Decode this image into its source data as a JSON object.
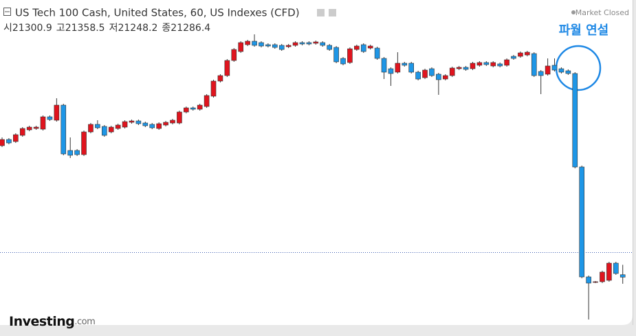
{
  "chart_data": {
    "type": "candlestick",
    "title": "US Tech 100 Cash, United States, 60, US Indexes (CFD)",
    "status": "Market Closed",
    "ohlc_labels": [
      "시",
      "고",
      "저",
      "종"
    ],
    "annotation": "파월 연설",
    "logo": "Investing",
    "logo_suffix": ".com",
    "up_color": "#e0141e",
    "down_color": "#1e96e6",
    "ylim": [
      21020,
      22840
    ],
    "open": [
      22052,
      22088,
      22076,
      22112,
      22144,
      22152,
      22148,
      22220,
      22200,
      22288,
      22024,
      22024,
      22000,
      22132,
      22176,
      22164,
      22132,
      22152,
      22160,
      22188,
      22196,
      22184,
      22176,
      22152,
      22172,
      22184,
      22184,
      22248,
      22272,
      22264,
      22280,
      22340,
      22428,
      22460,
      22548,
      22600,
      22640,
      22660,
      22652,
      22640,
      22640,
      22636,
      22628,
      22636,
      22652,
      22652,
      22648,
      22652,
      22636,
      22624,
      22560,
      22536,
      22612,
      22640,
      22620,
      22620,
      22560,
      22500,
      22480,
      22532,
      22532,
      22480,
      22448,
      22500,
      22468,
      22440,
      22460,
      22500,
      22508,
      22500,
      22520,
      22536,
      22516,
      22528,
      22520,
      22572,
      22572,
      22580,
      22588,
      22484,
      22468,
      22520,
      22500,
      22488,
      22472,
      21928,
      21288,
      21256,
      21260,
      21268,
      21368,
      21300.9
    ],
    "high": [
      22100,
      22096,
      22124,
      22160,
      22168,
      22168,
      22228,
      22228,
      22328,
      22296,
      22100,
      22032,
      22140,
      22184,
      22200,
      22172,
      22168,
      22180,
      22200,
      22204,
      22204,
      22192,
      22184,
      22188,
      22196,
      22208,
      22256,
      22280,
      22280,
      22296,
      22352,
      22436,
      22468,
      22556,
      22620,
      22660,
      22668,
      22700,
      22660,
      22648,
      22648,
      22644,
      22644,
      22660,
      22660,
      22660,
      22664,
      22660,
      22644,
      22632,
      22568,
      22624,
      22640,
      22648,
      22640,
      22628,
      22568,
      22508,
      22596,
      22540,
      22540,
      22488,
      22500,
      22508,
      22476,
      22468,
      22512,
      22516,
      22516,
      22540,
      22544,
      22544,
      22544,
      22536,
      22560,
      22580,
      22600,
      22604,
      22596,
      22492,
      22560,
      22560,
      22508,
      22496,
      22480,
      21936,
      21296,
      21264,
      21324,
      21376,
      21376,
      21358.5
    ],
    "low": [
      22044,
      22060,
      22068,
      22104,
      22136,
      22144,
      22140,
      22196,
      22192,
      21996,
      21980,
      21992,
      21992,
      22124,
      22148,
      22104,
      22124,
      22144,
      22152,
      22180,
      22172,
      22160,
      22148,
      22144,
      22164,
      22176,
      22176,
      22240,
      22256,
      22256,
      22272,
      22332,
      22420,
      22452,
      22540,
      22592,
      22632,
      22628,
      22624,
      22624,
      22616,
      22604,
      22620,
      22628,
      22636,
      22636,
      22640,
      22628,
      22604,
      22532,
      22520,
      22528,
      22604,
      22592,
      22612,
      22552,
      22440,
      22400,
      22472,
      22512,
      22472,
      22432,
      22440,
      22452,
      22348,
      22432,
      22452,
      22492,
      22488,
      22492,
      22512,
      22516,
      22508,
      22508,
      22512,
      22552,
      22564,
      22572,
      22452,
      22352,
      22460,
      22484,
      22472,
      22464,
      21920,
      21280,
      21040,
      21252,
      21252,
      21260,
      21300,
      21248.2
    ],
    "close": [
      22088,
      22068,
      22116,
      22152,
      22160,
      22160,
      22220,
      22204,
      22288,
      22004,
      21996,
      22000,
      22132,
      22176,
      22156,
      22112,
      22160,
      22172,
      22192,
      22196,
      22180,
      22168,
      22156,
      22180,
      22188,
      22200,
      22248,
      22272,
      22264,
      22288,
      22344,
      22428,
      22460,
      22548,
      22612,
      22652,
      22660,
      22636,
      22632,
      22632,
      22624,
      22612,
      22636,
      22652,
      22644,
      22644,
      22656,
      22636,
      22612,
      22540,
      22528,
      22616,
      22632,
      22600,
      22632,
      22560,
      22480,
      22472,
      22532,
      22520,
      22480,
      22440,
      22492,
      22460,
      22436,
      22460,
      22504,
      22508,
      22496,
      22532,
      22536,
      22524,
      22536,
      22516,
      22552,
      22560,
      22592,
      22596,
      22460,
      22460,
      22516,
      22492,
      22480,
      22472,
      21928,
      21288,
      21252,
      21260,
      21316,
      21368,
      21308,
      21286.4
    ]
  }
}
